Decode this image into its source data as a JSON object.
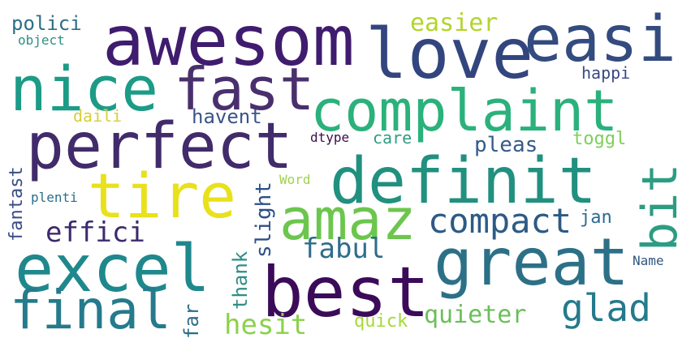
{
  "words": {
    "awesom": {
      "text": "awesom",
      "color": "#3f1c6e"
    },
    "love": {
      "text": "love",
      "color": "#33457e"
    },
    "easi": {
      "text": "easi",
      "color": "#334b7e"
    },
    "nice": {
      "text": "nice",
      "color": "#1c9b86"
    },
    "fast": {
      "text": "fast",
      "color": "#49306d"
    },
    "complaint": {
      "text": "complaint",
      "color": "#2bb17b"
    },
    "perfect": {
      "text": "perfect",
      "color": "#412b6a"
    },
    "definit": {
      "text": "definit",
      "color": "#21907f"
    },
    "tire": {
      "text": "tire",
      "color": "#e8e11b"
    },
    "amaz": {
      "text": "amaz",
      "color": "#6cc64e"
    },
    "bit": {
      "text": "bit",
      "color": "#2d9c83"
    },
    "compact": {
      "text": "compact",
      "color": "#2d5a86"
    },
    "excel": {
      "text": "excel",
      "color": "#1f888c"
    },
    "great": {
      "text": "great",
      "color": "#2c7087"
    },
    "best": {
      "text": "best",
      "color": "#3b0b59"
    },
    "final": {
      "text": "final",
      "color": "#257b8c"
    },
    "glad": {
      "text": "glad",
      "color": "#247a8b"
    },
    "fabul": {
      "text": "fabul",
      "color": "#2e6d8b"
    },
    "effici": {
      "text": "effici",
      "color": "#3c2a6c"
    },
    "hesit": {
      "text": "hesit",
      "color": "#8bd14c"
    },
    "quieter": {
      "text": "quieter",
      "color": "#6bbf5a"
    },
    "quick": {
      "text": "quick",
      "color": "#a6da36"
    },
    "easier": {
      "text": "easier",
      "color": "#b2d52b"
    },
    "polici": {
      "text": "polici",
      "color": "#2d6f86"
    },
    "object": {
      "text": "object",
      "color": "#2d8f83"
    },
    "happi": {
      "text": "happi",
      "color": "#3a4a82"
    },
    "havent": {
      "text": "havent",
      "color": "#3b548a"
    },
    "daili": {
      "text": "daili",
      "color": "#d6cf3a"
    },
    "dtype": {
      "text": "dtype",
      "color": "#3c0c4f"
    },
    "care": {
      "text": "care",
      "color": "#2f9c82"
    },
    "pleas": {
      "text": "pleas",
      "color": "#355a8a"
    },
    "toggl": {
      "text": "toggl",
      "color": "#7fcf5a"
    },
    "fantast": {
      "text": "fantast",
      "color": "#3a4d84"
    },
    "plenti": {
      "text": "plenti",
      "color": "#2a6f8b"
    },
    "slight": {
      "text": "slight",
      "color": "#2c4f88"
    },
    "Word": {
      "text": "Word",
      "color": "#9ed34b"
    },
    "jan": {
      "text": "jan",
      "color": "#2c6b92"
    },
    "thank": {
      "text": "thank",
      "color": "#2e8e86"
    },
    "far": {
      "text": "far",
      "color": "#2d6d89"
    },
    "Name": {
      "text": "Name",
      "color": "#30577f"
    }
  }
}
